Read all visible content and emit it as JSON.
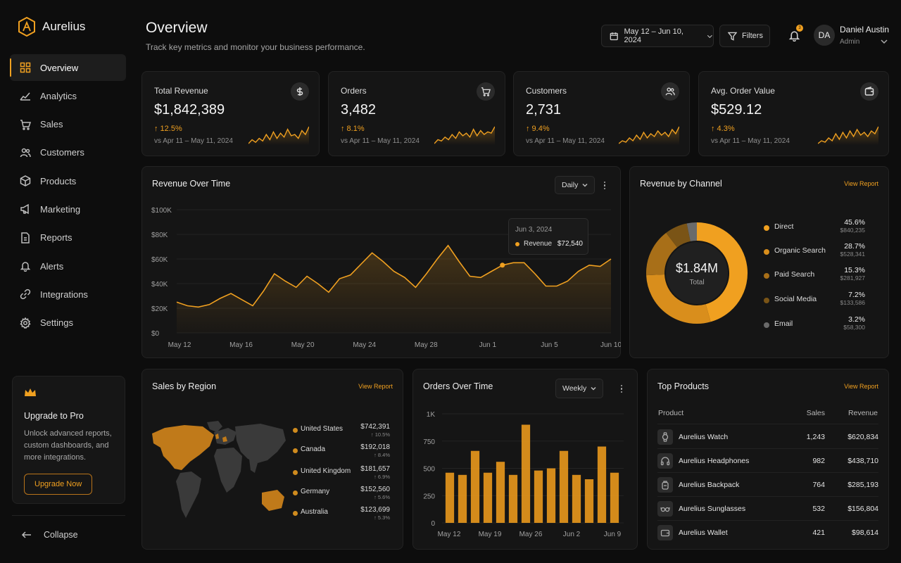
{
  "brand": {
    "name": "Aurelius"
  },
  "nav": {
    "items": [
      {
        "label": "Overview",
        "icon": "grid-icon",
        "active": true
      },
      {
        "label": "Analytics",
        "icon": "trend-icon"
      },
      {
        "label": "Sales",
        "icon": "cart-icon"
      },
      {
        "label": "Customers",
        "icon": "users-icon"
      },
      {
        "label": "Products",
        "icon": "box-icon"
      },
      {
        "label": "Marketing",
        "icon": "megaphone-icon"
      },
      {
        "label": "Reports",
        "icon": "report-icon"
      },
      {
        "label": "Alerts",
        "icon": "bell-icon"
      },
      {
        "label": "Integrations",
        "icon": "link-icon"
      },
      {
        "label": "Settings",
        "icon": "gear-icon"
      }
    ],
    "collapse_label": "Collapse"
  },
  "upgrade": {
    "title": "Upgrade to Pro",
    "desc": "Unlock advanced reports, custom dashboards, and more integrations.",
    "button": "Upgrade Now"
  },
  "header": {
    "title": "Overview",
    "subtitle": "Track key metrics and monitor your business performance.",
    "date_range": "May 12 – Jun 10, 2024",
    "filters_label": "Filters",
    "notification_count": "3",
    "user_initials": "DA",
    "user_name": "Daniel Austin",
    "user_role": "Admin"
  },
  "kpis": [
    {
      "title": "Total Revenue",
      "value": "$1,842,389",
      "change": "↑ 12.5%",
      "compare": "vs Apr 11 – May 11, 2024",
      "icon": "dollar-icon",
      "spark": [
        5,
        8,
        6,
        9,
        7,
        12,
        8,
        14,
        9,
        13,
        10,
        16,
        11,
        12,
        9,
        15,
        12,
        18
      ]
    },
    {
      "title": "Orders",
      "value": "3,482",
      "change": "↑ 8.1%",
      "compare": "vs Apr 11 – May 11, 2024",
      "icon": "cart-icon",
      "spark": [
        4,
        7,
        6,
        9,
        7,
        11,
        8,
        13,
        10,
        12,
        9,
        15,
        10,
        14,
        11,
        13,
        12,
        17
      ]
    },
    {
      "title": "Customers",
      "value": "2,731",
      "change": "↑ 9.4%",
      "compare": "vs Apr 11 – May 11, 2024",
      "icon": "users-icon",
      "spark": [
        4,
        6,
        5,
        8,
        6,
        10,
        7,
        12,
        8,
        11,
        9,
        13,
        10,
        12,
        9,
        14,
        11,
        16
      ]
    },
    {
      "title": "Avg. Order Value",
      "value": "$529.12",
      "change": "↑ 4.3%",
      "compare": "vs Apr 11 – May 11, 2024",
      "icon": "wallet-icon",
      "spark": [
        5,
        7,
        6,
        9,
        7,
        12,
        8,
        13,
        9,
        14,
        10,
        15,
        11,
        13,
        10,
        14,
        12,
        17
      ]
    }
  ],
  "revenue_chart": {
    "title": "Revenue Over Time",
    "period": "Daily",
    "tooltip": {
      "date": "Jun 3, 2024",
      "label": "Revenue",
      "value": "$72,540"
    }
  },
  "channels": {
    "title": "Revenue by Channel",
    "view_report": "View Report",
    "total": "$1.84M",
    "total_label": "Total",
    "items": [
      {
        "name": "Direct",
        "pct": "45.6%",
        "value": "$840,235",
        "color": "#f0a020"
      },
      {
        "name": "Organic Search",
        "pct": "28.7%",
        "value": "$528,341",
        "color": "#d98e1c"
      },
      {
        "name": "Paid Search",
        "pct": "15.3%",
        "value": "$281,927",
        "color": "#a86f18"
      },
      {
        "name": "Social Media",
        "pct": "7.2%",
        "value": "$133,586",
        "color": "#7a5416"
      },
      {
        "name": "Email",
        "pct": "3.2%",
        "value": "$58,300",
        "color": "#6a6a6a"
      }
    ]
  },
  "regions": {
    "title": "Sales by Region",
    "view_report": "View Report",
    "items": [
      {
        "name": "United States",
        "value": "$742,391",
        "pct": "↑ 10.5%"
      },
      {
        "name": "Canada",
        "value": "$192,018",
        "pct": "↑ 8.4%"
      },
      {
        "name": "United Kingdom",
        "value": "$181,657",
        "pct": "↑ 6.9%"
      },
      {
        "name": "Germany",
        "value": "$152,560",
        "pct": "↑ 5.6%"
      },
      {
        "name": "Australia",
        "value": "$123,699",
        "pct": "↑ 5.3%"
      }
    ]
  },
  "orders_chart": {
    "title": "Orders Over Time",
    "period": "Weekly"
  },
  "top_products": {
    "title": "Top Products",
    "view_report": "View Report",
    "headers": {
      "product": "Product",
      "sales": "Sales",
      "revenue": "Revenue"
    },
    "rows": [
      {
        "name": "Aurelius Watch",
        "sales": "1,243",
        "revenue": "$620,834",
        "icon": "watch-icon"
      },
      {
        "name": "Aurelius Headphones",
        "sales": "982",
        "revenue": "$438,710",
        "icon": "headphones-icon"
      },
      {
        "name": "Aurelius Backpack",
        "sales": "764",
        "revenue": "$285,193",
        "icon": "backpack-icon"
      },
      {
        "name": "Aurelius Sunglasses",
        "sales": "532",
        "revenue": "$156,804",
        "icon": "sunglasses-icon"
      },
      {
        "name": "Aurelius Wallet",
        "sales": "421",
        "revenue": "$98,614",
        "icon": "wallet-icon"
      }
    ]
  },
  "chart_data": [
    {
      "type": "area",
      "title": "Revenue Over Time",
      "x_ticks": [
        "May 12",
        "May 16",
        "May 20",
        "May 24",
        "May 28",
        "Jun 1",
        "Jun 5",
        "Jun 10"
      ],
      "y_ticks": [
        "$0",
        "$20K",
        "$40K",
        "$60K",
        "$80K",
        "$100K"
      ],
      "ylim": [
        0,
        100000
      ],
      "series": [
        {
          "name": "Revenue",
          "values": [
            25000,
            22000,
            21000,
            23000,
            28000,
            32000,
            27000,
            22000,
            34000,
            48000,
            42000,
            37000,
            46000,
            40000,
            33000,
            44000,
            47000,
            56000,
            65000,
            58000,
            50000,
            45000,
            37000,
            48000,
            60000,
            71000,
            58000,
            46000,
            45000,
            50000,
            55000,
            57000,
            57000,
            48000,
            38000,
            38000,
            42000,
            50000,
            55000,
            54000,
            60000
          ]
        }
      ],
      "grid": true
    },
    {
      "type": "pie",
      "title": "Revenue by Channel",
      "categories": [
        "Direct",
        "Organic Search",
        "Paid Search",
        "Social Media",
        "Email"
      ],
      "values": [
        45.6,
        28.7,
        15.3,
        7.2,
        3.2
      ]
    },
    {
      "type": "bar",
      "title": "Orders Over Time",
      "x_ticks": [
        "May 12",
        "May 19",
        "May 26",
        "Jun 2",
        "Jun 9"
      ],
      "y_ticks": [
        "0",
        "250",
        "500",
        "750",
        "1K"
      ],
      "ylim": [
        0,
        1000
      ],
      "values": [
        460,
        440,
        660,
        460,
        560,
        440,
        900,
        480,
        500,
        660,
        440,
        400,
        700,
        460
      ],
      "grid": true
    }
  ]
}
